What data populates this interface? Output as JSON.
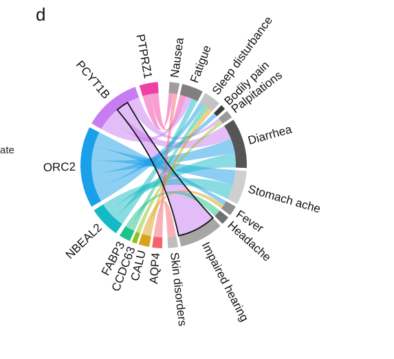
{
  "panel_letter": "d",
  "cut_label": "ate",
  "chart_data": {
    "type": "chord",
    "left_sectors": [
      {
        "name": "PTPRZ1",
        "color": "#f03fa4"
      },
      {
        "name": "PCYT1B",
        "color": "#c77cf2"
      },
      {
        "name": "ORC2",
        "color": "#1aa0e8"
      },
      {
        "name": "NBEAL2",
        "color": "#13b9c4"
      },
      {
        "name": "FABP3",
        "color": "#1fc28a"
      },
      {
        "name": "CCDC63",
        "color": "#8cc21e"
      },
      {
        "name": "CALU",
        "color": "#d9a21a"
      },
      {
        "name": "AQP4",
        "color": "#f4646f"
      }
    ],
    "right_sectors": [
      {
        "name": "Nausea",
        "color": "#9e9e9e"
      },
      {
        "name": "Fatigue",
        "color": "#7f7f7f"
      },
      {
        "name": "Sleep disturbance",
        "color": "#c4c4c4"
      },
      {
        "name": "Bodily pain",
        "color": "#3d3d3d"
      },
      {
        "name": "Palpitations",
        "color": "#9a9a9a"
      },
      {
        "name": "Diarrhea",
        "color": "#555555"
      },
      {
        "name": "Stomach ache",
        "color": "#cfcfcf"
      },
      {
        "name": "Fever",
        "color": "#8e8e8e"
      },
      {
        "name": "Headache",
        "color": "#707070"
      },
      {
        "name": "Impaired hearing",
        "color": "#a6a6a6"
      },
      {
        "name": "Skin disorders",
        "color": "#bdbdbd"
      }
    ],
    "links": [
      {
        "from": "PTPRZ1",
        "to": "Nausea"
      },
      {
        "from": "PTPRZ1",
        "to": "Fatigue"
      },
      {
        "from": "PCYT1B",
        "to": "Fatigue"
      },
      {
        "from": "PCYT1B",
        "to": "Diarrhea"
      },
      {
        "from": "PCYT1B",
        "to": "Impaired hearing"
      },
      {
        "from": "PCYT1B",
        "to": "Palpitations"
      },
      {
        "from": "ORC2",
        "to": "Sleep disturbance"
      },
      {
        "from": "ORC2",
        "to": "Bodily pain"
      },
      {
        "from": "ORC2",
        "to": "Diarrhea"
      },
      {
        "from": "ORC2",
        "to": "Stomach ache"
      },
      {
        "from": "ORC2",
        "to": "Fever"
      },
      {
        "from": "NBEAL2",
        "to": "Fatigue"
      },
      {
        "from": "NBEAL2",
        "to": "Diarrhea"
      },
      {
        "from": "NBEAL2",
        "to": "Stomach ache"
      },
      {
        "from": "FABP3",
        "to": "Sleep disturbance"
      },
      {
        "from": "FABP3",
        "to": "Headache"
      },
      {
        "from": "CCDC63",
        "to": "Palpitations"
      },
      {
        "from": "CALU",
        "to": "Sleep disturbance"
      },
      {
        "from": "CALU",
        "to": "Fever"
      },
      {
        "from": "AQP4",
        "to": "Nausea"
      },
      {
        "from": "AQP4",
        "to": "Skin disorders"
      }
    ],
    "highlighted_link": {
      "from": "PCYT1B",
      "to": "Impaired hearing"
    }
  }
}
